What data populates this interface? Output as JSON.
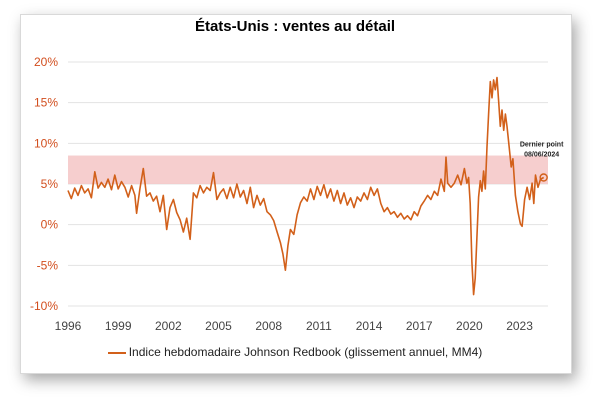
{
  "chart_data": {
    "type": "line",
    "title": "États-Unis : ventes au détail",
    "x_tick_labels": [
      "1996",
      "1999",
      "2002",
      "2005",
      "2008",
      "2011",
      "2014",
      "2017",
      "2020",
      "2023"
    ],
    "y_tick_labels": [
      "20%",
      "15%",
      "10%",
      "5%",
      "0%",
      "-5%",
      "-10%"
    ],
    "ylim": [
      -10,
      20
    ],
    "xlim": [
      1996.0,
      2024.7
    ],
    "grid": true,
    "legend_position": "bottom",
    "band": {
      "from": 5,
      "to": 8.5,
      "color": "#f4c2c2"
    },
    "annotation": {
      "line1": "Dernier point",
      "line2": "08/06/2024",
      "x": 2024.44,
      "y": 5.8
    },
    "colors": {
      "series": "#d2601a",
      "axis_text": "#d24e1e",
      "band": "#f4c2c2"
    },
    "series": [
      {
        "name": "Indice hebdomadaire Johnson Redbook (glissement annuel, MM4)",
        "points": [
          [
            1996.0,
            4.2
          ],
          [
            1996.2,
            3.2
          ],
          [
            1996.4,
            4.5
          ],
          [
            1996.6,
            3.6
          ],
          [
            1996.8,
            4.8
          ],
          [
            1997.0,
            3.9
          ],
          [
            1997.2,
            4.4
          ],
          [
            1997.4,
            3.3
          ],
          [
            1997.6,
            6.5
          ],
          [
            1997.8,
            4.5
          ],
          [
            1998.0,
            5.2
          ],
          [
            1998.2,
            4.6
          ],
          [
            1998.4,
            5.6
          ],
          [
            1998.6,
            4.3
          ],
          [
            1998.8,
            6.1
          ],
          [
            1999.0,
            4.4
          ],
          [
            1999.2,
            5.3
          ],
          [
            1999.4,
            4.6
          ],
          [
            1999.6,
            3.4
          ],
          [
            1999.8,
            4.8
          ],
          [
            2000.0,
            3.6
          ],
          [
            2000.1,
            1.4
          ],
          [
            2000.3,
            4.4
          ],
          [
            2000.5,
            6.9
          ],
          [
            2000.7,
            3.5
          ],
          [
            2000.9,
            3.9
          ],
          [
            2001.1,
            2.9
          ],
          [
            2001.3,
            3.5
          ],
          [
            2001.5,
            1.6
          ],
          [
            2001.7,
            3.6
          ],
          [
            2001.9,
            -0.6
          ],
          [
            2002.1,
            2.1
          ],
          [
            2002.3,
            3.1
          ],
          [
            2002.5,
            1.5
          ],
          [
            2002.7,
            0.6
          ],
          [
            2002.9,
            -0.9
          ],
          [
            2003.1,
            0.8
          ],
          [
            2003.3,
            -1.8
          ],
          [
            2003.5,
            3.9
          ],
          [
            2003.7,
            3.3
          ],
          [
            2003.9,
            4.8
          ],
          [
            2004.1,
            3.9
          ],
          [
            2004.3,
            4.6
          ],
          [
            2004.5,
            4.2
          ],
          [
            2004.7,
            6.4
          ],
          [
            2004.9,
            3.1
          ],
          [
            2005.1,
            3.9
          ],
          [
            2005.3,
            4.4
          ],
          [
            2005.5,
            3.2
          ],
          [
            2005.7,
            4.6
          ],
          [
            2005.9,
            3.3
          ],
          [
            2006.1,
            5.0
          ],
          [
            2006.3,
            3.4
          ],
          [
            2006.5,
            4.2
          ],
          [
            2006.7,
            2.6
          ],
          [
            2006.9,
            4.6
          ],
          [
            2007.1,
            2.1
          ],
          [
            2007.3,
            3.6
          ],
          [
            2007.5,
            2.4
          ],
          [
            2007.7,
            3.2
          ],
          [
            2007.9,
            1.6
          ],
          [
            2008.1,
            1.2
          ],
          [
            2008.3,
            0.5
          ],
          [
            2008.5,
            -0.9
          ],
          [
            2008.7,
            -2.2
          ],
          [
            2008.85,
            -3.6
          ],
          [
            2009.0,
            -5.6
          ],
          [
            2009.15,
            -2.6
          ],
          [
            2009.3,
            -0.6
          ],
          [
            2009.5,
            -1.2
          ],
          [
            2009.7,
            1.2
          ],
          [
            2009.9,
            2.7
          ],
          [
            2010.1,
            3.4
          ],
          [
            2010.3,
            2.9
          ],
          [
            2010.5,
            4.4
          ],
          [
            2010.7,
            3.1
          ],
          [
            2010.9,
            4.7
          ],
          [
            2011.1,
            3.6
          ],
          [
            2011.3,
            4.9
          ],
          [
            2011.5,
            3.3
          ],
          [
            2011.7,
            4.4
          ],
          [
            2011.9,
            2.9
          ],
          [
            2012.1,
            4.2
          ],
          [
            2012.3,
            2.6
          ],
          [
            2012.5,
            3.9
          ],
          [
            2012.7,
            2.4
          ],
          [
            2012.9,
            3.3
          ],
          [
            2013.1,
            2.1
          ],
          [
            2013.3,
            3.4
          ],
          [
            2013.5,
            2.9
          ],
          [
            2013.7,
            3.9
          ],
          [
            2013.9,
            3.1
          ],
          [
            2014.1,
            4.6
          ],
          [
            2014.3,
            3.6
          ],
          [
            2014.5,
            4.4
          ],
          [
            2014.7,
            2.6
          ],
          [
            2014.9,
            1.6
          ],
          [
            2015.1,
            2.1
          ],
          [
            2015.3,
            1.3
          ],
          [
            2015.5,
            1.6
          ],
          [
            2015.7,
            0.9
          ],
          [
            2015.9,
            1.4
          ],
          [
            2016.1,
            0.7
          ],
          [
            2016.3,
            1.1
          ],
          [
            2016.5,
            0.6
          ],
          [
            2016.7,
            1.6
          ],
          [
            2016.9,
            1.1
          ],
          [
            2017.1,
            2.3
          ],
          [
            2017.3,
            2.9
          ],
          [
            2017.5,
            3.6
          ],
          [
            2017.7,
            3.1
          ],
          [
            2017.9,
            4.1
          ],
          [
            2018.1,
            3.6
          ],
          [
            2018.3,
            5.6
          ],
          [
            2018.5,
            4.1
          ],
          [
            2018.6,
            8.3
          ],
          [
            2018.7,
            5.1
          ],
          [
            2018.9,
            4.6
          ],
          [
            2019.1,
            5.1
          ],
          [
            2019.3,
            6.1
          ],
          [
            2019.5,
            4.9
          ],
          [
            2019.7,
            6.9
          ],
          [
            2019.85,
            5.1
          ],
          [
            2019.95,
            5.8
          ],
          [
            2020.05,
            2.6
          ],
          [
            2020.15,
            -4.6
          ],
          [
            2020.25,
            -8.6
          ],
          [
            2020.35,
            -6.6
          ],
          [
            2020.45,
            -1.6
          ],
          [
            2020.55,
            3.4
          ],
          [
            2020.65,
            5.4
          ],
          [
            2020.75,
            4.1
          ],
          [
            2020.85,
            6.6
          ],
          [
            2020.95,
            4.4
          ],
          [
            2021.05,
            9.6
          ],
          [
            2021.15,
            13.6
          ],
          [
            2021.25,
            17.6
          ],
          [
            2021.35,
            15.6
          ],
          [
            2021.45,
            17.8
          ],
          [
            2021.55,
            16.6
          ],
          [
            2021.65,
            18.1
          ],
          [
            2021.75,
            15.1
          ],
          [
            2021.85,
            12.1
          ],
          [
            2021.95,
            14.1
          ],
          [
            2022.05,
            11.6
          ],
          [
            2022.15,
            13.6
          ],
          [
            2022.25,
            12.1
          ],
          [
            2022.35,
            10.1
          ],
          [
            2022.5,
            7.1
          ],
          [
            2022.6,
            8.1
          ],
          [
            2022.75,
            3.6
          ],
          [
            2022.9,
            1.6
          ],
          [
            2023.05,
            0.1
          ],
          [
            2023.15,
            -0.2
          ],
          [
            2023.3,
            3.1
          ],
          [
            2023.45,
            4.6
          ],
          [
            2023.6,
            3.1
          ],
          [
            2023.75,
            5.1
          ],
          [
            2023.85,
            2.6
          ],
          [
            2023.95,
            6.1
          ],
          [
            2024.1,
            4.6
          ],
          [
            2024.25,
            5.6
          ],
          [
            2024.44,
            5.8
          ]
        ]
      }
    ]
  }
}
